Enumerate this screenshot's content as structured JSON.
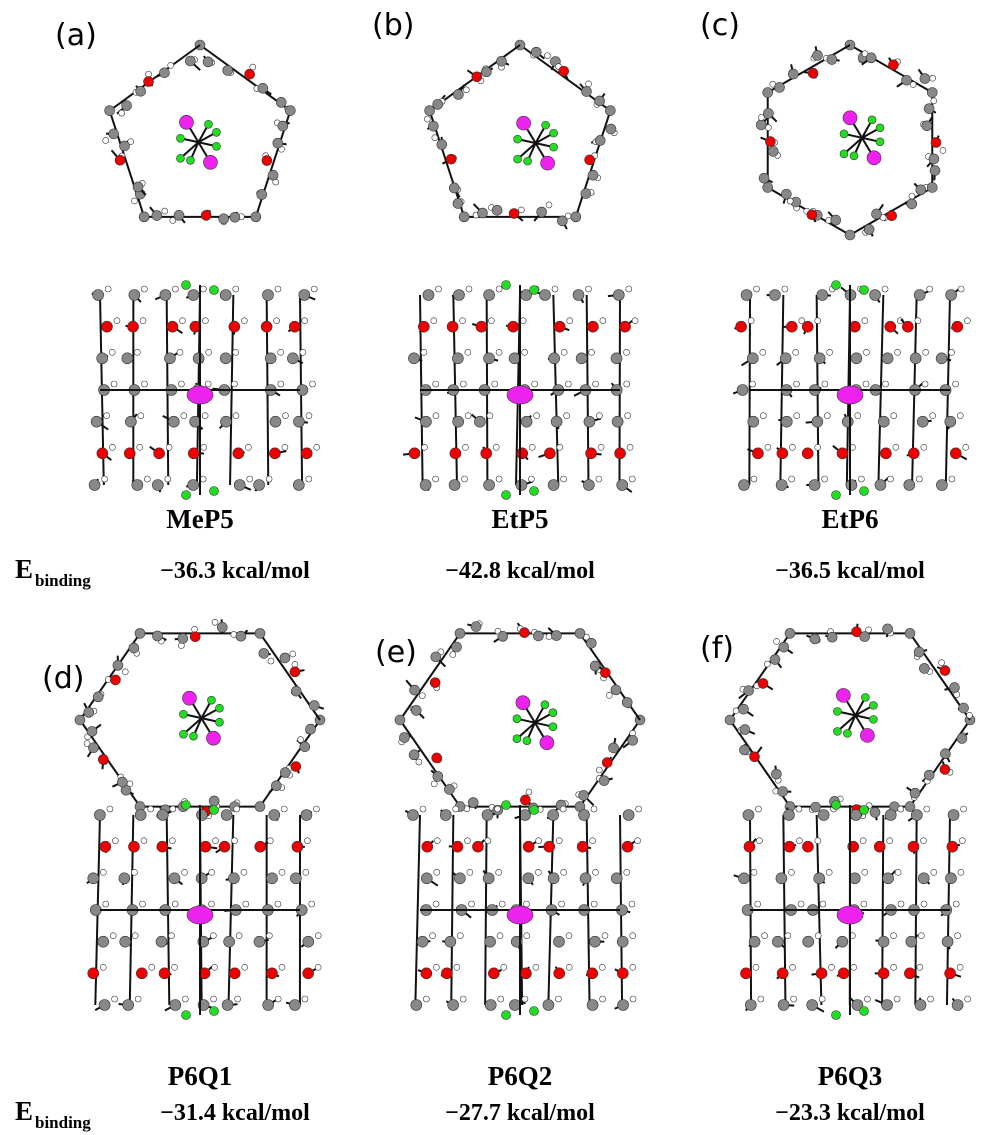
{
  "rows": [
    {
      "energy_label": {
        "symbol": "E",
        "subscript": "binding"
      },
      "panels": [
        {
          "label": "(a)",
          "name": "MeP5",
          "energy": "−36.3 kcal/mol"
        },
        {
          "label": "(b)",
          "name": "EtP5",
          "energy": "−42.8 kcal/mol"
        },
        {
          "label": "(c)",
          "name": "EtP6",
          "energy": "−36.5 kcal/mol"
        }
      ]
    },
    {
      "energy_label": {
        "symbol": "E",
        "subscript": "binding"
      },
      "panels": [
        {
          "label": "(d)",
          "name": "P6Q1",
          "energy": "−31.4 kcal/mol"
        },
        {
          "label": "(e)",
          "name": "P6Q2",
          "energy": "−27.7 kcal/mol"
        },
        {
          "label": "(f)",
          "name": "P6Q3",
          "energy": "−23.3 kcal/mol"
        }
      ]
    }
  ]
}
